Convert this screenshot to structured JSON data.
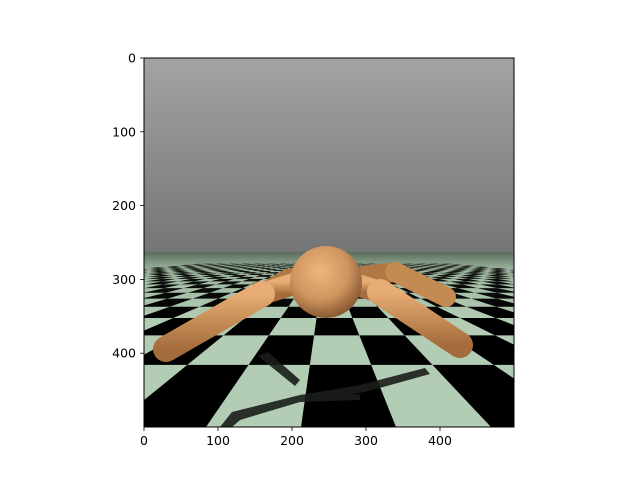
{
  "figure": {
    "background": "#ffffff",
    "axes": {
      "xlim": [
        0,
        500
      ],
      "ylim": [
        500,
        0
      ],
      "y_inverted": true,
      "x_ticks": [
        {
          "value": 0,
          "label": "0"
        },
        {
          "value": 100,
          "label": "100"
        },
        {
          "value": 200,
          "label": "200"
        },
        {
          "value": 300,
          "label": "300"
        },
        {
          "value": 400,
          "label": "400"
        }
      ],
      "y_ticks": [
        {
          "value": 0,
          "label": "0"
        },
        {
          "value": 100,
          "label": "100"
        },
        {
          "value": 200,
          "label": "200"
        },
        {
          "value": 300,
          "label": "300"
        },
        {
          "value": 400,
          "label": "400"
        }
      ]
    },
    "scene": {
      "description_icon": "ant-robot-simulation-frame",
      "sky_top": "#a3a3a3",
      "sky_bottom": "#757575",
      "floor_light": "#b3cdb5",
      "floor_dark": "#000000",
      "body_color": "#d39a62",
      "body_shade": "#8a5a32"
    }
  }
}
